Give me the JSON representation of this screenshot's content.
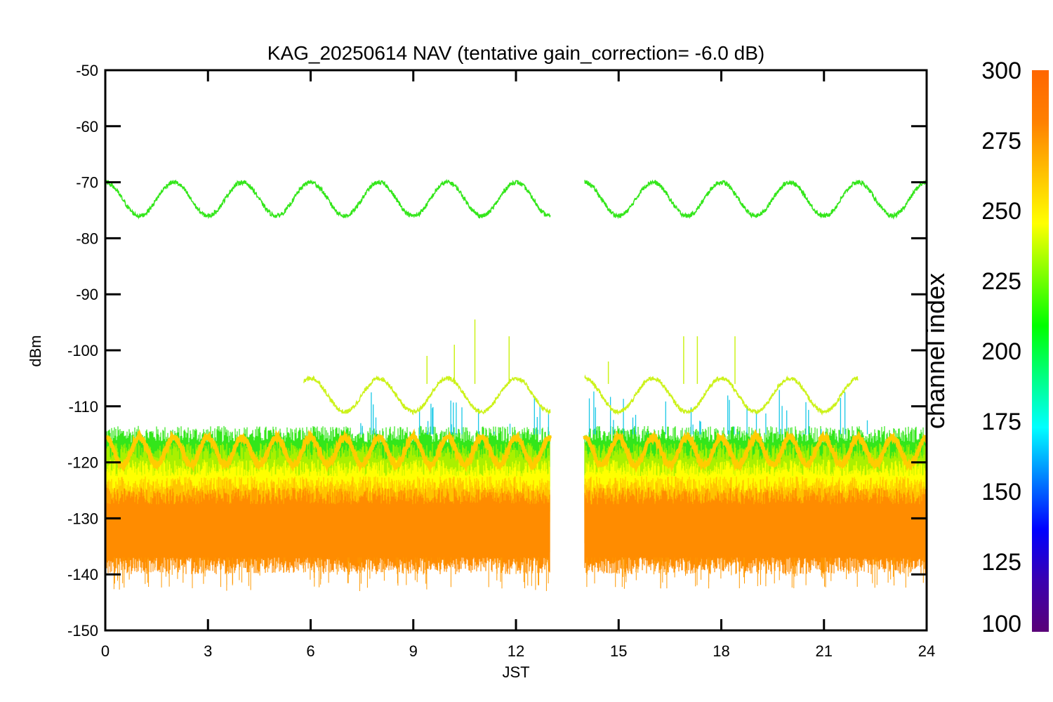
{
  "chart_data": {
    "type": "line",
    "title": "KAG_20250614 NAV (tentative gain_correction= -6.0 dB)",
    "xlabel": "JST",
    "ylabel": "dBm",
    "xlim": [
      0,
      24
    ],
    "ylim": [
      -150,
      -50
    ],
    "xticks": [
      "0",
      "3",
      "6",
      "9",
      "12",
      "15",
      "18",
      "21",
      "24"
    ],
    "yticks": [
      "-50",
      "-60",
      "-70",
      "-80",
      "-90",
      "-100",
      "-110",
      "-120",
      "-130",
      "-140",
      "-150"
    ],
    "data_gap_hours": [
      13.0,
      14.0
    ],
    "series": [
      {
        "color": "#33e61a",
        "x_range": [
          0,
          24
        ],
        "center_dbm": -73,
        "amplitude_db": 3,
        "period_hours": 2.0
      },
      {
        "color": "#ccf21a",
        "x_range": [
          5.8,
          22.0
        ],
        "center_dbm": -108,
        "amplitude_db": 3,
        "period_hours": 2.0,
        "spikes": [
          {
            "x": 9.4,
            "y": -101
          },
          {
            "x": 10.2,
            "y": -99
          },
          {
            "x": 10.8,
            "y": -94.5
          },
          {
            "x": 11.8,
            "y": -97.5
          },
          {
            "x": 14.7,
            "y": -102
          },
          {
            "x": 16.9,
            "y": -97.5
          },
          {
            "x": 17.3,
            "y": -97.5
          },
          {
            "x": 18.4,
            "y": -97.5
          }
        ]
      },
      {
        "color": "#ffcc00",
        "x_range": [
          0,
          24
        ],
        "center_dbm": -118,
        "amplitude_db": 2.5,
        "period_hours": 1.0
      }
    ],
    "noise_floor_bands": [
      {
        "color": "#33e61a",
        "top_dbm": -115,
        "bottom_dbm": -123
      },
      {
        "color": "#aaf000",
        "top_dbm": -118,
        "bottom_dbm": -127
      },
      {
        "color": "#ffff00",
        "top_dbm": -121,
        "bottom_dbm": -130
      },
      {
        "color": "#ffc400",
        "top_dbm": -124,
        "bottom_dbm": -134
      },
      {
        "color": "#ff8c00",
        "top_dbm": -126,
        "bottom_dbm": -137
      }
    ],
    "colorbar": {
      "label": "channel index",
      "min": 100,
      "max": 300,
      "ticks": [
        "300",
        "275",
        "250",
        "225",
        "200",
        "175",
        "150",
        "125",
        "100"
      ],
      "colors": [
        "#5a0078",
        "#3a00b0",
        "#0000ff",
        "#0080ff",
        "#00ffff",
        "#00ff80",
        "#00ff00",
        "#80ff00",
        "#ffff00",
        "#ffc000",
        "#ff8000",
        "#ff6600"
      ]
    }
  }
}
